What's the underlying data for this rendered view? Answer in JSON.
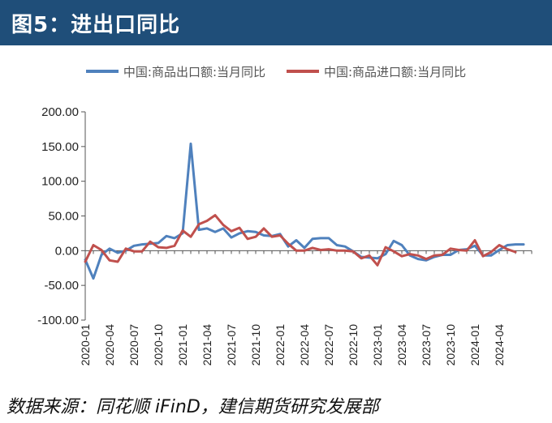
{
  "header": {
    "title": "图5：进出口同比"
  },
  "source": "数据来源：同花顺 iFinD，建信期货研究发展部",
  "chart_data": {
    "type": "line",
    "ylim": [
      -100,
      200
    ],
    "y_ticks": [
      "200.00",
      "150.00",
      "100.00",
      "50.00",
      "0.00",
      "-50.00",
      "-100.00"
    ],
    "x_tick_labels": [
      "2020-01",
      "2020-04",
      "2020-07",
      "2020-10",
      "2021-01",
      "2021-04",
      "2021-07",
      "2021-10",
      "2022-01",
      "2022-04",
      "2022-07",
      "2022-10",
      "2023-01",
      "2023-04",
      "2023-07",
      "2023-10",
      "2024-01",
      "2024-04"
    ],
    "x": [
      "2020-01",
      "2020-02",
      "2020-03",
      "2020-04",
      "2020-05",
      "2020-06",
      "2020-07",
      "2020-08",
      "2020-09",
      "2020-10",
      "2020-11",
      "2020-12",
      "2021-01",
      "2021-02",
      "2021-03",
      "2021-04",
      "2021-05",
      "2021-06",
      "2021-07",
      "2021-08",
      "2021-09",
      "2021-10",
      "2021-11",
      "2021-12",
      "2022-01",
      "2022-02",
      "2022-03",
      "2022-04",
      "2022-05",
      "2022-06",
      "2022-07",
      "2022-08",
      "2022-09",
      "2022-10",
      "2022-11",
      "2022-12",
      "2023-01",
      "2023-02",
      "2023-03",
      "2023-04",
      "2023-05",
      "2023-06",
      "2023-07",
      "2023-08",
      "2023-09",
      "2023-10",
      "2023-11",
      "2023-12",
      "2024-01",
      "2024-02",
      "2024-03",
      "2024-04",
      "2024-05",
      "2024-06",
      "2024-07",
      "2024-08"
    ],
    "series": [
      {
        "name": "中国:商品出口额:当月同比",
        "color": "#4f81bd",
        "values": [
          -13,
          -40,
          -6,
          3,
          -3,
          0,
          7,
          9,
          10,
          11,
          21,
          18,
          25,
          154,
          30,
          32,
          27,
          32,
          19,
          25,
          28,
          27,
          22,
          21,
          24,
          6,
          15,
          4,
          17,
          18,
          18,
          8,
          6,
          -1,
          -9,
          -10,
          -11,
          -5,
          14,
          8,
          -7,
          -12,
          -14,
          -9,
          -6,
          -6,
          1,
          2,
          7,
          -7,
          -7,
          1,
          8,
          9,
          9,
          null
        ],
        "__unused": null
      },
      {
        "name": "中国:商品进口额:当月同比",
        "color": "#c0504d",
        "values": [
          -16,
          8,
          1,
          -14,
          -16,
          3,
          -1,
          -1,
          13,
          5,
          4,
          7,
          29,
          20,
          38,
          43,
          51,
          37,
          28,
          33,
          17,
          20,
          32,
          20,
          22,
          10,
          0,
          0,
          4,
          1,
          2,
          0,
          0,
          -1,
          -11,
          -7,
          -21,
          5,
          -1,
          -8,
          -5,
          -7,
          -12,
          -7,
          -6,
          3,
          1,
          0,
          15,
          -8,
          -2,
          8,
          2,
          -2,
          null,
          null
        ]
      }
    ]
  }
}
